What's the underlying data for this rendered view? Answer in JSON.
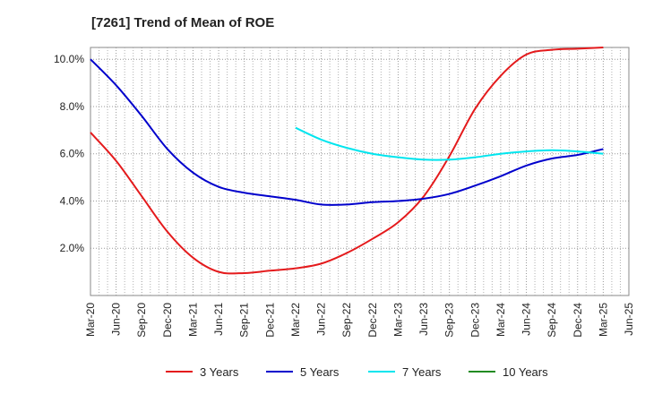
{
  "chart_data": {
    "type": "line",
    "title": "[7261]  Trend of Mean of ROE",
    "xlabel": "",
    "ylabel": "",
    "x_ticks": [
      "Mar-20",
      "Jun-20",
      "Sep-20",
      "Dec-20",
      "Mar-21",
      "Jun-21",
      "Sep-21",
      "Dec-21",
      "Mar-22",
      "Jun-22",
      "Sep-22",
      "Dec-22",
      "Mar-23",
      "Jun-23",
      "Sep-23",
      "Dec-23",
      "Mar-24",
      "Jun-24",
      "Sep-24",
      "Dec-24",
      "Mar-25",
      "Jun-25"
    ],
    "y_ticks": [
      2.0,
      4.0,
      6.0,
      8.0,
      10.0
    ],
    "y_tick_labels": [
      "2.0%",
      "4.0%",
      "6.0%",
      "8.0%",
      "10.0%"
    ],
    "ylim": [
      0.0,
      10.5
    ],
    "grid": true,
    "legend_position": "bottom",
    "series": [
      {
        "name": "3 Years",
        "color": "#e41a1c",
        "x": [
          "Mar-20",
          "Jun-20",
          "Sep-20",
          "Dec-20",
          "Mar-21",
          "Jun-21",
          "Sep-21",
          "Dec-21",
          "Mar-22",
          "Jun-22",
          "Sep-22",
          "Dec-22",
          "Mar-23",
          "Jun-23",
          "Sep-23",
          "Dec-23",
          "Mar-24",
          "Jun-24",
          "Sep-24",
          "Dec-24",
          "Mar-25"
        ],
        "values": [
          6.9,
          5.7,
          4.2,
          2.7,
          1.6,
          1.0,
          0.95,
          1.05,
          1.15,
          1.35,
          1.8,
          2.4,
          3.1,
          4.2,
          5.9,
          7.9,
          9.3,
          10.2,
          10.4,
          10.45,
          10.5
        ]
      },
      {
        "name": "5 Years",
        "color": "#0000cc",
        "x": [
          "Mar-20",
          "Jun-20",
          "Sep-20",
          "Dec-20",
          "Mar-21",
          "Jun-21",
          "Sep-21",
          "Dec-21",
          "Mar-22",
          "Jun-22",
          "Sep-22",
          "Dec-22",
          "Mar-23",
          "Jun-23",
          "Sep-23",
          "Dec-23",
          "Mar-24",
          "Jun-24",
          "Sep-24",
          "Dec-24",
          "Mar-25"
        ],
        "values": [
          10.0,
          8.9,
          7.6,
          6.2,
          5.2,
          4.6,
          4.35,
          4.2,
          4.05,
          3.85,
          3.85,
          3.95,
          4.0,
          4.1,
          4.3,
          4.65,
          5.05,
          5.5,
          5.8,
          5.95,
          6.2
        ]
      },
      {
        "name": "7 Years",
        "color": "#00e5ee",
        "x": [
          "Mar-22",
          "Jun-22",
          "Sep-22",
          "Dec-22",
          "Mar-23",
          "Jun-23",
          "Sep-23",
          "Dec-23",
          "Mar-24",
          "Jun-24",
          "Sep-24",
          "Dec-24",
          "Mar-25"
        ],
        "values": [
          7.1,
          6.6,
          6.25,
          6.0,
          5.85,
          5.75,
          5.75,
          5.85,
          6.0,
          6.1,
          6.15,
          6.1,
          6.0
        ]
      },
      {
        "name": "10 Years",
        "color": "#228b22",
        "x": [],
        "values": []
      }
    ]
  }
}
